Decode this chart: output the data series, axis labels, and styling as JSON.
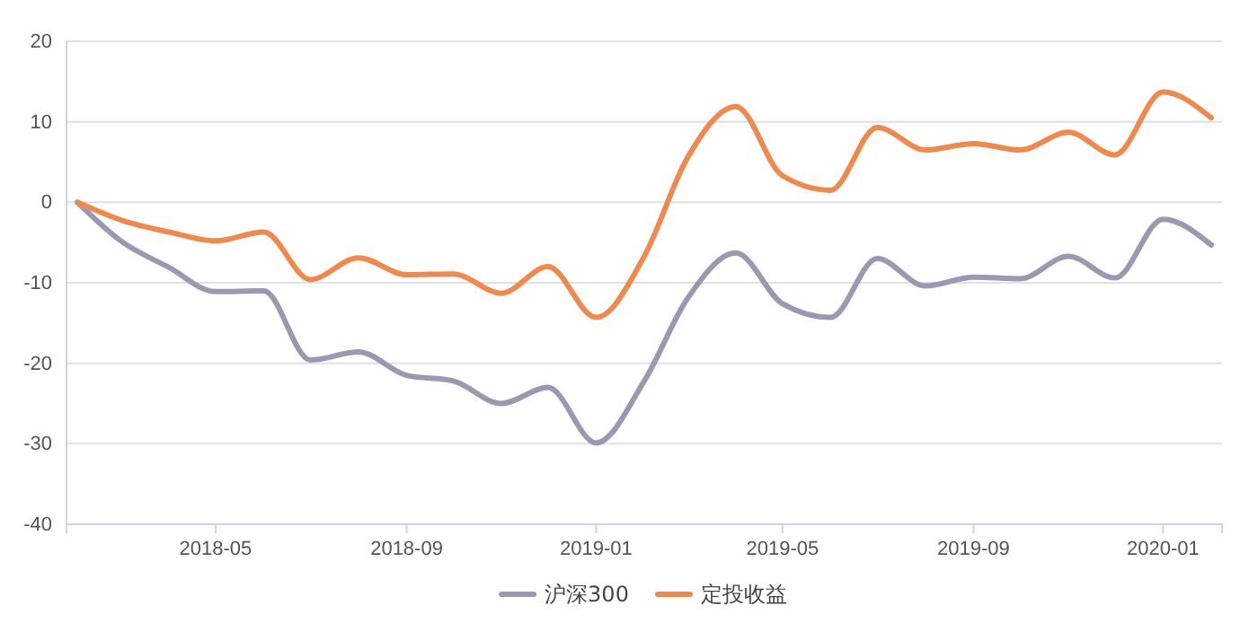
{
  "chart_data": {
    "type": "line",
    "x": [
      "2018-02",
      "2018-03",
      "2018-04",
      "2018-05",
      "2018-06",
      "2018-07",
      "2018-08",
      "2018-09",
      "2018-10",
      "2018-11",
      "2018-12",
      "2019-01",
      "2019-02",
      "2019-03",
      "2019-04",
      "2019-05",
      "2019-06",
      "2019-07",
      "2019-08",
      "2019-09",
      "2019-10",
      "2019-11",
      "2019-12",
      "2020-01",
      "2020-02"
    ],
    "series": [
      {
        "name": "沪深300",
        "color": "#9b99b1",
        "values": [
          0,
          -4.8,
          -8.1,
          -11.1,
          -11,
          -19.6,
          -18.6,
          -21.5,
          -22.2,
          -25,
          -23,
          -29.9,
          -22.2,
          -11.9,
          -6.3,
          -12.6,
          -14.3,
          -7,
          -10.4,
          -9.3,
          -9.5,
          -6.7,
          -9.4,
          -2.1,
          -5.3
        ]
      },
      {
        "name": "定投收益",
        "color": "#ee8a4f",
        "values": [
          0,
          -2.2,
          -3.7,
          -4.8,
          -3.7,
          -9.6,
          -6.9,
          -9,
          -8.9,
          -11.3,
          -8,
          -14.3,
          -6.7,
          5.6,
          11.9,
          3.3,
          1.5,
          9.3,
          6.5,
          7.3,
          6.5,
          8.7,
          5.9,
          13.7,
          10.5
        ]
      }
    ],
    "xlim": [
      "2018-01-25",
      "2020-02-08"
    ],
    "xticks": [
      "2018-05",
      "2018-09",
      "2019-01",
      "2019-05",
      "2019-09",
      "2020-01"
    ],
    "ylim": [
      -40,
      20
    ],
    "yticks": [
      -40,
      -30,
      -20,
      -10,
      0,
      10,
      20
    ],
    "grid": "y",
    "legend": "bottom",
    "marker": "none",
    "line_style": "solid"
  }
}
